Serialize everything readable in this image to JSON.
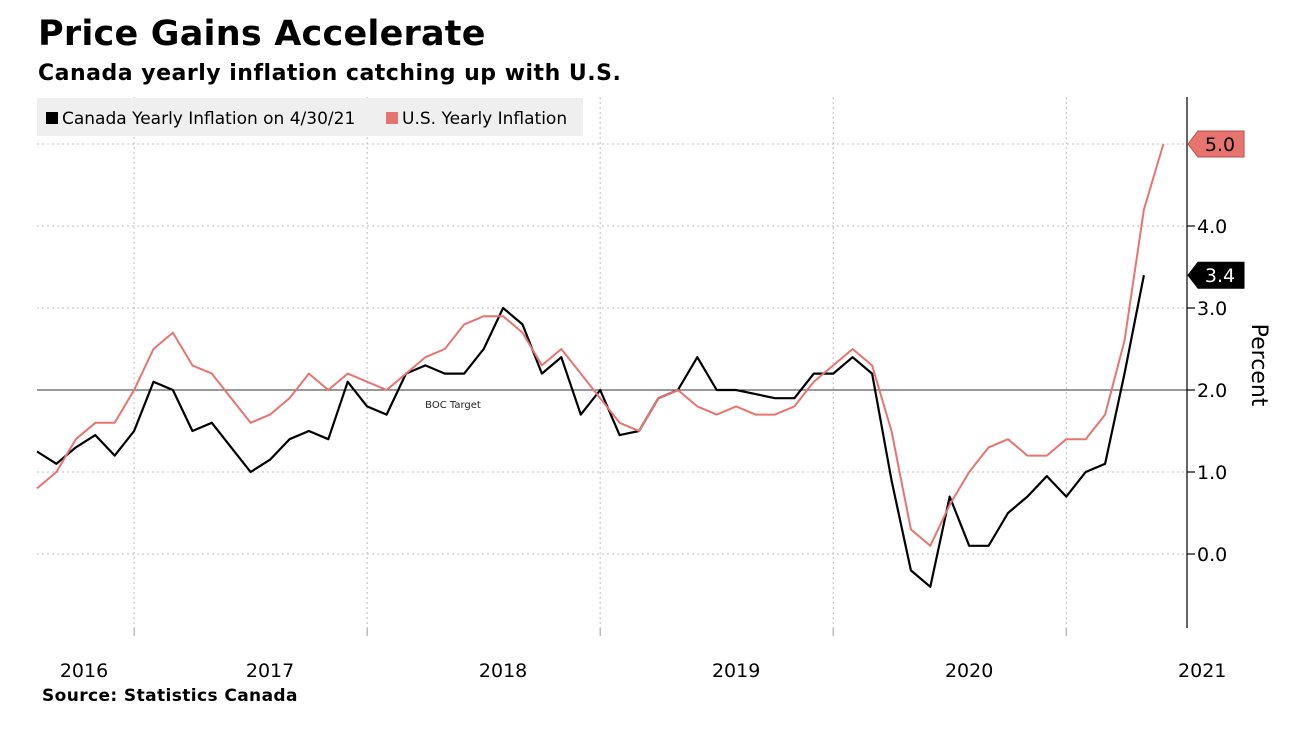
{
  "header": {
    "title": "Price Gains Accelerate",
    "subtitle": "Canada yearly inflation catching up with U.S."
  },
  "footer": {
    "source": "Source: Statistics Canada"
  },
  "colors": {
    "canada": "#000000",
    "us": "#e87470",
    "grid": "#bdbdbd",
    "target": "#333333"
  },
  "chart_data": {
    "type": "line",
    "title": "Price Gains Accelerate",
    "subtitle": "Canada yearly inflation catching up with U.S.",
    "xlabel": "",
    "ylabel": "Percent",
    "y_axis_side": "right",
    "ylim": [
      -0.9,
      5.5
    ],
    "yticks": [
      0.0,
      1.0,
      2.0,
      3.0,
      4.0
    ],
    "ytick_labels": [
      "0.0",
      "1.0",
      "2.0",
      "3.0",
      "4.0"
    ],
    "x_start": "2016-01",
    "x_end": "2021-05",
    "year_labels": [
      "2016",
      "2017",
      "2018",
      "2019",
      "2020",
      "2021"
    ],
    "grid": true,
    "legend_position": "top-left",
    "reference_line": {
      "value": 2.0,
      "label": "BOC Target"
    },
    "series": [
      {
        "name": "Canada Yearly Inflation on 4/30/21",
        "color": "#000000",
        "start": "2016-01",
        "end_label": "3.4",
        "values": [
          1.25,
          1.1,
          1.3,
          1.45,
          1.2,
          1.5,
          2.1,
          2.0,
          1.5,
          1.6,
          1.3,
          1.0,
          1.15,
          1.4,
          1.5,
          1.4,
          2.1,
          1.8,
          1.7,
          2.2,
          2.3,
          2.2,
          2.2,
          2.5,
          3.0,
          2.8,
          2.2,
          2.4,
          1.7,
          2.0,
          1.45,
          1.5,
          1.9,
          2.0,
          2.4,
          2.0,
          2.0,
          1.95,
          1.9,
          1.9,
          2.2,
          2.2,
          2.4,
          2.2,
          0.9,
          -0.2,
          -0.4,
          0.7,
          0.1,
          0.1,
          0.5,
          0.7,
          0.95,
          0.7,
          1.0,
          1.1,
          2.2,
          3.4
        ]
      },
      {
        "name": "U.S. Yearly Inflation",
        "color": "#e87470",
        "start": "2016-01",
        "end_label": "5.0",
        "values": [
          0.8,
          1.0,
          1.4,
          1.6,
          1.6,
          2.0,
          2.5,
          2.7,
          2.3,
          2.2,
          1.9,
          1.6,
          1.7,
          1.9,
          2.2,
          2.0,
          2.2,
          2.1,
          2.0,
          2.2,
          2.4,
          2.5,
          2.8,
          2.9,
          2.9,
          2.7,
          2.3,
          2.5,
          2.2,
          1.9,
          1.6,
          1.5,
          1.9,
          2.0,
          1.8,
          1.7,
          1.8,
          1.7,
          1.7,
          1.8,
          2.1,
          2.3,
          2.5,
          2.3,
          1.5,
          0.3,
          0.1,
          0.6,
          1.0,
          1.3,
          1.4,
          1.2,
          1.2,
          1.4,
          1.4,
          1.7,
          2.6,
          4.2,
          5.0
        ]
      }
    ]
  }
}
